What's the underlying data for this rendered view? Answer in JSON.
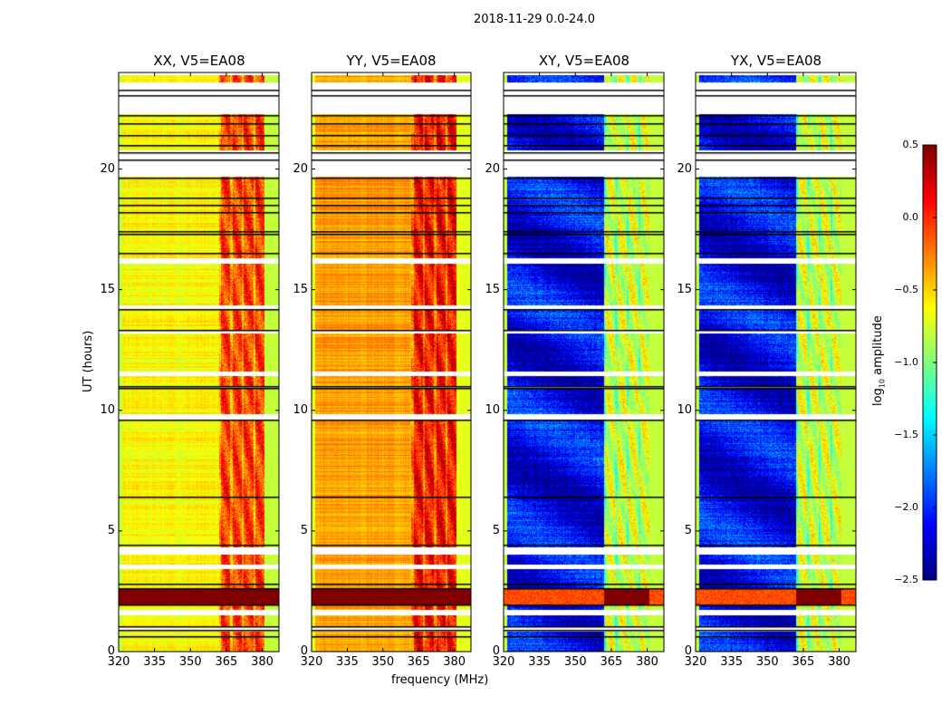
{
  "chart_data": {
    "type": "heatmap",
    "title": "2018-11-29 0.0-24.0",
    "xlabel": "frequency (MHz)",
    "ylabel": "UT (hours)",
    "xlim": [
      320,
      387
    ],
    "ylim": [
      0,
      24
    ],
    "xticks": [
      "320",
      "335",
      "350",
      "365",
      "380"
    ],
    "xtick_values": [
      320,
      335,
      350,
      365,
      380
    ],
    "yticks": [
      "0",
      "5",
      "10",
      "15",
      "20"
    ],
    "ytick_values": [
      0,
      5,
      10,
      15,
      20
    ],
    "colorbar": {
      "label_main": "log",
      "label_sub": "10",
      "label_rest": " amplitude",
      "range": [
        -2.5,
        0.5
      ],
      "colormap": "jet",
      "ticks": [
        "0.5",
        "0.0",
        "−0.5",
        "−1.0",
        "−1.5",
        "−2.0",
        "−2.5"
      ],
      "tick_values": [
        0.5,
        0.0,
        -0.5,
        -1.0,
        -1.5,
        -2.0,
        -2.5
      ]
    },
    "panels": [
      {
        "title": "XX, V5=EA08",
        "base_level": -0.62,
        "rfi_level": -0.05,
        "edge_level": -0.8
      },
      {
        "title": "YY, V5=EA08",
        "base_level": -0.35,
        "rfi_level": 0.1,
        "edge_level": -0.7
      },
      {
        "title": "XY, V5=EA08",
        "base_level": -2.15,
        "rfi_level": -0.75,
        "edge_level": -0.8
      },
      {
        "title": "YX, V5=EA08",
        "base_level": -2.15,
        "rfi_level": -0.75,
        "edge_level": -0.8
      }
    ],
    "rfi_band_mhz": [
      362,
      381
    ],
    "strong_interference_hours": [
      1.9,
      2.6
    ],
    "flagged_hours": [
      [
        22.3,
        23.6
      ],
      [
        19.7,
        20.8
      ],
      [
        16.1,
        16.3
      ],
      [
        14.2,
        14.35
      ],
      [
        13.2,
        13.3
      ],
      [
        11.4,
        11.6
      ],
      [
        10.9,
        11.0
      ],
      [
        9.6,
        9.85
      ],
      [
        4.0,
        4.3
      ],
      [
        3.4,
        3.6
      ],
      [
        1.5,
        1.7
      ],
      [
        0.8,
        1.0
      ],
      [
        23.9,
        24.0
      ]
    ],
    "black_line_hours": [
      23.05,
      23.3,
      22.25,
      21.9,
      21.4,
      21.0,
      20.7,
      20.4,
      19.65,
      18.8,
      18.5,
      18.2,
      17.4,
      17.3,
      16.5,
      14.2,
      13.3,
      11.0,
      10.9,
      9.6,
      6.4,
      4.4,
      2.8,
      2.6,
      1.9,
      1.0,
      0.85,
      0.6
    ]
  }
}
